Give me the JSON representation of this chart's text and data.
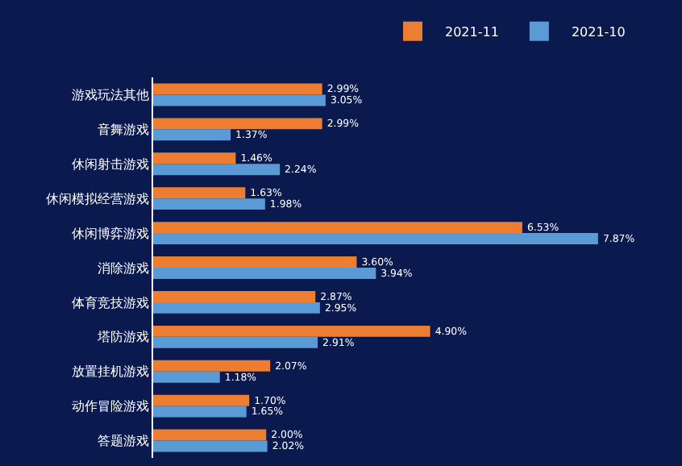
{
  "chart_data": {
    "type": "bar",
    "orientation": "horizontal",
    "categories": [
      "游戏玩法其他",
      "音舞游戏",
      "休闲射击游戏",
      "休闲模拟经营游戏",
      "休闲博弈游戏",
      "消除游戏",
      "体育竞技游戏",
      "塔防游戏",
      "放置挂机游戏",
      "动作冒险游戏",
      "答题游戏"
    ],
    "series": [
      {
        "name": "2021-11",
        "color": "#ed7d31",
        "values": [
          2.99,
          2.99,
          1.46,
          1.63,
          6.53,
          3.6,
          2.87,
          4.9,
          2.07,
          1.7,
          2.0
        ],
        "value_labels": [
          "2.99%",
          "2.99%",
          "1.46%",
          "1.63%",
          "6.53%",
          "3.60%",
          "2.87%",
          "4.90%",
          "2.07%",
          "1.70%",
          "2.00%"
        ]
      },
      {
        "name": "2021-10",
        "color": "#5b9bd5",
        "values": [
          3.05,
          1.37,
          2.24,
          1.98,
          7.87,
          3.94,
          2.95,
          2.91,
          1.18,
          1.65,
          2.02
        ],
        "value_labels": [
          "3.05%",
          "1.37%",
          "2.24%",
          "1.98%",
          "7.87%",
          "3.94%",
          "2.95%",
          "2.91%",
          "1.18%",
          "1.65%",
          "2.02%"
        ]
      }
    ],
    "legend": "top right",
    "grid": false
  }
}
